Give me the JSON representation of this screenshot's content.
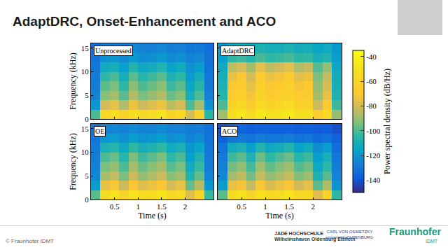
{
  "slide": {
    "title": "AdaptDRC, Onset-Enhancement and ACO",
    "footer": "© Fraunhofer IDMT",
    "logos": {
      "jade": [
        "JADE HOCHSCHULE",
        "Wilhelmshaven Oldenburg Elsfleth"
      ],
      "university": [
        "CARL VON OSSIETZKY",
        "universität OLDENBURG"
      ],
      "fraunhofer": "Fraunhofer",
      "institute": "IDMT"
    }
  },
  "chart_data": [
    {
      "type": "heatmap",
      "title": "Unprocessed",
      "ylabel": "Frequency (kHz)",
      "tick_labels": "y",
      "x": [
        0.1,
        0.3,
        0.5,
        0.7,
        0.9,
        1.1,
        1.3,
        1.5,
        1.7,
        1.9,
        2.1,
        2.3,
        2.5
      ],
      "y": [
        1,
        3,
        5,
        7,
        9,
        11,
        13,
        15
      ],
      "xlim": [
        0,
        2.6
      ],
      "xticks": [
        0.5,
        1,
        1.5,
        2
      ],
      "ylim": [
        0,
        16
      ],
      "yticks": [
        0,
        5,
        10,
        15
      ],
      "z": [
        [
          -100,
          -58,
          -52,
          -62,
          -52,
          -57,
          -55,
          -50,
          -60,
          -57,
          -80,
          -62,
          -105
        ],
        [
          -120,
          -80,
          -76,
          -86,
          -74,
          -82,
          -78,
          -74,
          -84,
          -80,
          -100,
          -88,
          -122
        ],
        [
          -126,
          -92,
          -88,
          -98,
          -86,
          -94,
          -90,
          -86,
          -96,
          -92,
          -110,
          -100,
          -127
        ],
        [
          -128,
          -98,
          -94,
          -104,
          -92,
          -100,
          -96,
          -92,
          -102,
          -98,
          -114,
          -106,
          -129
        ],
        [
          -129,
          -104,
          -100,
          -110,
          -98,
          -106,
          -102,
          -98,
          -108,
          -104,
          -118,
          -111,
          -130
        ],
        [
          -130,
          -112,
          -110,
          -116,
          -107,
          -113,
          -111,
          -107,
          -115,
          -112,
          -122,
          -117,
          -131
        ],
        [
          -131,
          -122,
          -120,
          -124,
          -119,
          -123,
          -122,
          -119,
          -124,
          -122,
          -127,
          -125,
          -132
        ],
        [
          -132,
          -127,
          -126,
          -128,
          -125,
          -127,
          -127,
          -125,
          -128,
          -127,
          -130,
          -129,
          -133
        ]
      ]
    },
    {
      "type": "heatmap",
      "title": "AdaptDRC",
      "tick_labels": false,
      "x": [
        0.1,
        0.3,
        0.5,
        0.7,
        0.9,
        1.1,
        1.3,
        1.5,
        1.7,
        1.9,
        2.1,
        2.3,
        2.5
      ],
      "y": [
        1,
        3,
        5,
        7,
        9,
        11,
        13,
        15
      ],
      "xlim": [
        0,
        2.6
      ],
      "xticks": [
        0.5,
        1,
        1.5,
        2
      ],
      "ylim": [
        0,
        16
      ],
      "yticks": [
        0,
        5,
        10,
        15
      ],
      "z": [
        [
          -88,
          -52,
          -48,
          -55,
          -47,
          -51,
          -50,
          -46,
          -53,
          -51,
          -68,
          -56,
          -90
        ],
        [
          -100,
          -60,
          -56,
          -66,
          -54,
          -61,
          -58,
          -54,
          -63,
          -60,
          -82,
          -68,
          -102
        ],
        [
          -106,
          -66,
          -62,
          -72,
          -60,
          -67,
          -64,
          -60,
          -69,
          -66,
          -88,
          -75,
          -108
        ],
        [
          -108,
          -70,
          -66,
          -76,
          -63,
          -70,
          -67,
          -63,
          -72,
          -69,
          -91,
          -79,
          -110
        ],
        [
          -110,
          -75,
          -70,
          -80,
          -68,
          -75,
          -72,
          -68,
          -77,
          -74,
          -94,
          -83,
          -111
        ],
        [
          -112,
          -84,
          -80,
          -88,
          -77,
          -84,
          -81,
          -77,
          -86,
          -83,
          -99,
          -90,
          -113
        ],
        [
          -116,
          -104,
          -102,
          -106,
          -101,
          -104,
          -103,
          -101,
          -105,
          -104,
          -110,
          -107,
          -117
        ],
        [
          -118,
          -110,
          -109,
          -111,
          -108,
          -110,
          -110,
          -108,
          -111,
          -110,
          -114,
          -112,
          -119
        ]
      ],
      "colorbar": {
        "title": "Power spectral density (dB/Hz)",
        "range": [
          -150,
          -35
        ],
        "ticks": [
          -40,
          -60,
          -80,
          -100,
          -120,
          -140
        ]
      }
    },
    {
      "type": "heatmap",
      "title": "OE",
      "xlabel": "Time (s)",
      "ylabel": "Frequency (kHz)",
      "x": [
        0.1,
        0.3,
        0.5,
        0.7,
        0.9,
        1.1,
        1.3,
        1.5,
        1.7,
        1.9,
        2.1,
        2.3,
        2.5
      ],
      "y": [
        1,
        3,
        5,
        7,
        9,
        11,
        13,
        15
      ],
      "xlim": [
        0,
        2.6
      ],
      "xticks": [
        0.5,
        1,
        1.5,
        2
      ],
      "ylim": [
        0,
        16
      ],
      "yticks": [
        0,
        5,
        10,
        15
      ],
      "z": [
        [
          -98,
          -55,
          -50,
          -60,
          -50,
          -55,
          -53,
          -48,
          -58,
          -55,
          -78,
          -60,
          -103
        ],
        [
          -118,
          -75,
          -71,
          -82,
          -70,
          -78,
          -74,
          -70,
          -80,
          -76,
          -97,
          -85,
          -120
        ],
        [
          -125,
          -87,
          -83,
          -94,
          -82,
          -90,
          -86,
          -82,
          -92,
          -88,
          -107,
          -97,
          -126
        ],
        [
          -127,
          -94,
          -90,
          -100,
          -88,
          -96,
          -92,
          -88,
          -98,
          -94,
          -112,
          -103,
          -128
        ],
        [
          -128,
          -100,
          -96,
          -106,
          -94,
          -102,
          -98,
          -94,
          -104,
          -100,
          -116,
          -108,
          -129
        ],
        [
          -129,
          -109,
          -106,
          -113,
          -104,
          -110,
          -108,
          -104,
          -112,
          -109,
          -120,
          -115,
          -130
        ],
        [
          -130,
          -120,
          -118,
          -122,
          -117,
          -121,
          -120,
          -117,
          -122,
          -120,
          -126,
          -123,
          -131
        ],
        [
          -131,
          -126,
          -125,
          -127,
          -124,
          -126,
          -126,
          -124,
          -127,
          -126,
          -129,
          -128,
          -132
        ]
      ]
    },
    {
      "type": "heatmap",
      "title": "ACO",
      "xlabel": "Time (s)",
      "tick_labels": "x",
      "x": [
        0.1,
        0.3,
        0.5,
        0.7,
        0.9,
        1.1,
        1.3,
        1.5,
        1.7,
        1.9,
        2.1,
        2.3,
        2.5
      ],
      "y": [
        1,
        3,
        5,
        7,
        9,
        11,
        13,
        15
      ],
      "xlim": [
        0,
        2.6
      ],
      "xticks": [
        0.5,
        1,
        1.5,
        2
      ],
      "ylim": [
        0,
        16
      ],
      "yticks": [
        0,
        5,
        10,
        15
      ],
      "z": [
        [
          -98,
          -56,
          -51,
          -60,
          -51,
          -56,
          -54,
          -49,
          -58,
          -56,
          -78,
          -61,
          -104
        ],
        [
          -118,
          -76,
          -72,
          -83,
          -71,
          -79,
          -75,
          -71,
          -81,
          -77,
          -98,
          -86,
          -121
        ],
        [
          -125,
          -88,
          -84,
          -95,
          -83,
          -91,
          -87,
          -83,
          -93,
          -89,
          -108,
          -98,
          -126
        ],
        [
          -127,
          -95,
          -91,
          -101,
          -89,
          -97,
          -93,
          -89,
          -99,
          -95,
          -113,
          -104,
          -128
        ],
        [
          -129,
          -102,
          -98,
          -108,
          -96,
          -104,
          -100,
          -96,
          -106,
          -102,
          -117,
          -110,
          -130
        ],
        [
          -131,
          -112,
          -109,
          -116,
          -107,
          -113,
          -111,
          -107,
          -115,
          -112,
          -123,
          -118,
          -133
        ],
        [
          -136,
          -130,
          -129,
          -131,
          -128,
          -130,
          -130,
          -128,
          -131,
          -130,
          -134,
          -132,
          -137
        ],
        [
          -140,
          -137,
          -136,
          -138,
          -136,
          -137,
          -137,
          -136,
          -138,
          -137,
          -139,
          -138,
          -141
        ]
      ]
    }
  ]
}
